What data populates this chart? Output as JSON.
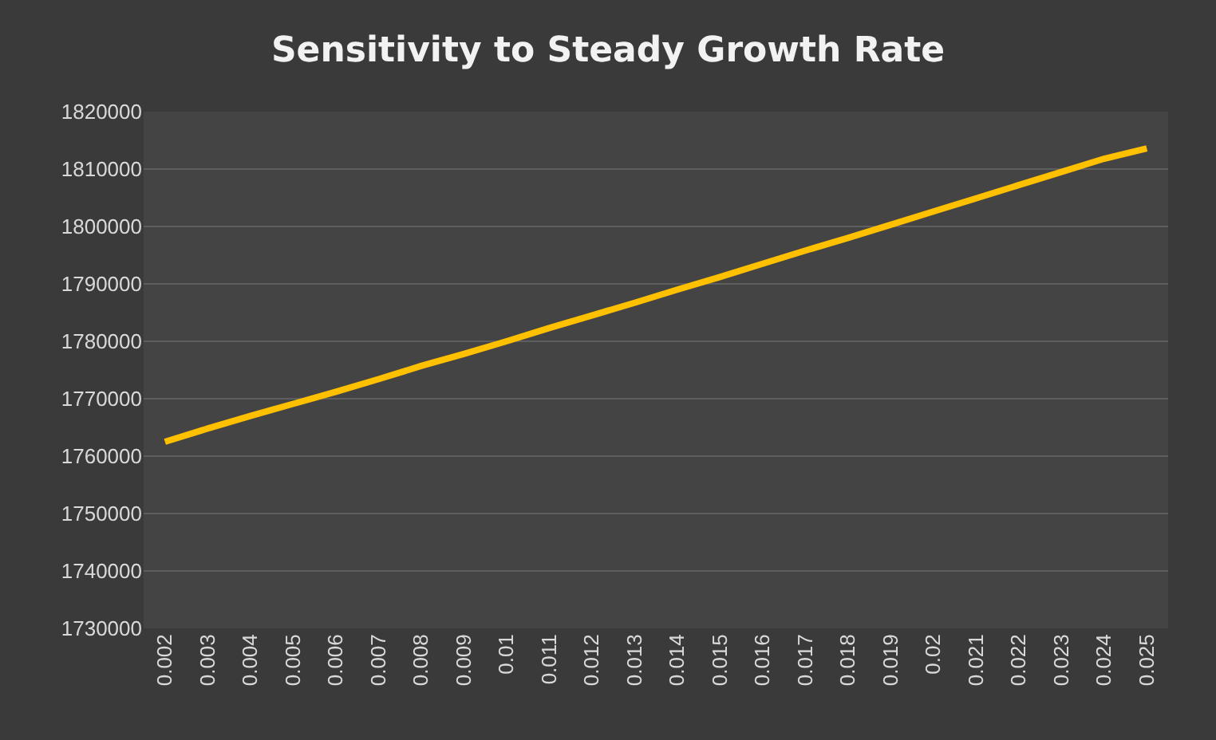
{
  "chart_data": {
    "type": "line",
    "title": "Sensitivity to Steady Growth Rate",
    "categories": [
      "0.002",
      "0.003",
      "0.004",
      "0.005",
      "0.006",
      "0.007",
      "0.008",
      "0.009",
      "0.01",
      "0.011",
      "0.012",
      "0.013",
      "0.014",
      "0.015",
      "0.016",
      "0.017",
      "0.018",
      "0.019",
      "0.02",
      "0.021",
      "0.022",
      "0.023",
      "0.024",
      "0.025"
    ],
    "series": [
      {
        "color": "#ffc000",
        "values": [
          1762500,
          1764800,
          1767000,
          1769100,
          1771200,
          1773400,
          1775700,
          1777800,
          1780000,
          1782300,
          1784500,
          1786700,
          1789000,
          1791200,
          1793500,
          1795800,
          1798000,
          1800300,
          1802600,
          1804900,
          1807200,
          1809500,
          1811800,
          1813600
        ]
      }
    ],
    "ylim": [
      1730000,
      1820000
    ],
    "yticks": [
      1730000,
      1740000,
      1750000,
      1760000,
      1770000,
      1780000,
      1790000,
      1800000,
      1810000,
      1820000
    ],
    "grid": "y",
    "legend": false,
    "marker": "none",
    "line_style": "solid"
  }
}
